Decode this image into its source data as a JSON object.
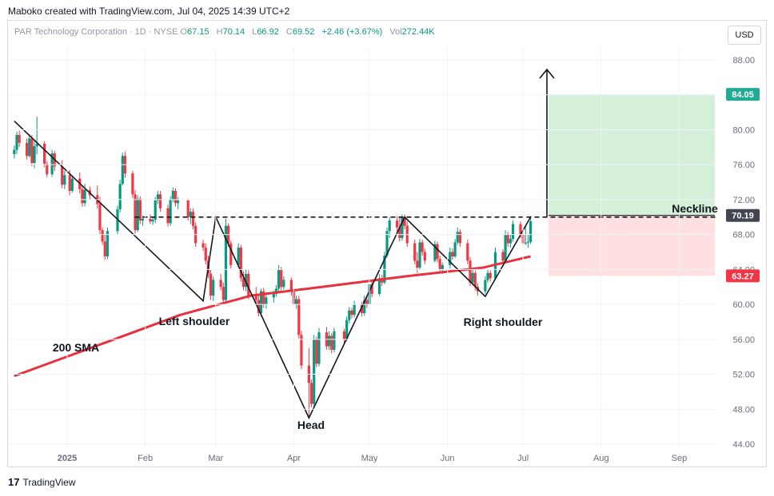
{
  "header": {
    "credit": "Maboko created with TradingView.com, Jul 04, 2025 14:39 UTC+2"
  },
  "legend": {
    "symbol": "PAR Technology Corporation · 1D · NYSE",
    "o_label": "O",
    "o": "67.15",
    "h_label": "H",
    "h": "70.14",
    "l_label": "L",
    "l": "66.92",
    "c_label": "C",
    "c": "69.52",
    "change": "+2.46 (+3.67%)",
    "vol_label": "Vol",
    "vol": "272.44K"
  },
  "currency_button": "USD",
  "footer": {
    "logo": "17",
    "brand": "TradingView"
  },
  "chart_data": {
    "type": "candlestick",
    "price_axis": {
      "ticks": [
        "88.00",
        "84.00",
        "80.00",
        "76.00",
        "72.00",
        "68.00",
        "64.00",
        "60.00",
        "56.00",
        "52.00",
        "48.00",
        "44.00"
      ],
      "range": [
        44,
        91
      ]
    },
    "time_axis": {
      "ticks": [
        "2025",
        "Feb",
        "Mar",
        "Apr",
        "May",
        "Jun",
        "Jul",
        "Aug",
        "Sep"
      ]
    },
    "price_labels": [
      {
        "text": "84.05",
        "value": 84.05,
        "color": "#22ab94"
      },
      {
        "text": "70.19",
        "value": 70.19,
        "color": "#434651"
      },
      {
        "text": "63.27",
        "value": 63.27,
        "color": "#f23645"
      }
    ],
    "annotations": [
      {
        "text": "Neckline"
      },
      {
        "text": "Left shoulder"
      },
      {
        "text": "Head"
      },
      {
        "text": "Right shoulder"
      },
      {
        "text": "200 SMA"
      }
    ],
    "neckline": 70.0,
    "target_zone": [
      70.19,
      84.05
    ],
    "stop_zone": [
      63.27,
      70.19
    ],
    "pattern_points": [
      [
        "2024-12-11",
        81.0
      ],
      [
        "2025-02-24",
        60.4
      ],
      [
        "2025-03-01",
        70.0
      ],
      [
        "2025-04-07",
        47.0
      ],
      [
        "2025-05-15",
        70.0
      ],
      [
        "2025-06-16",
        60.9
      ],
      [
        "2025-07-04",
        70.0
      ]
    ],
    "sma_200": [
      [
        "2024-12-11",
        51.8
      ],
      [
        "2025-01-15",
        55.5
      ],
      [
        "2025-02-15",
        58.8
      ],
      [
        "2025-03-15",
        61.0
      ],
      [
        "2025-04-15",
        62.1
      ],
      [
        "2025-05-15",
        63.2
      ],
      [
        "2025-06-15",
        64.2
      ],
      [
        "2025-07-04",
        65.5
      ]
    ],
    "candles": [
      [
        "12-11",
        77.2,
        78.2,
        76.7,
        77.7
      ],
      [
        "12-12",
        77.7,
        79.8,
        77.2,
        79.4
      ],
      [
        "12-13",
        79.4,
        79.9,
        78.0,
        78.5
      ],
      [
        "12-16",
        78.5,
        79.0,
        76.6,
        77.0
      ],
      [
        "12-17",
        77.0,
        79.5,
        76.8,
        79.0
      ],
      [
        "12-18",
        79.0,
        79.4,
        75.8,
        76.2
      ],
      [
        "12-19",
        76.2,
        78.7,
        75.6,
        78.1
      ],
      [
        "12-20",
        78.1,
        81.5,
        77.2,
        78.4
      ],
      [
        "12-23",
        78.4,
        78.7,
        75.7,
        76.1
      ],
      [
        "12-24",
        76.1,
        76.4,
        74.6,
        74.9
      ],
      [
        "12-26",
        74.9,
        77.7,
        74.6,
        77.3
      ],
      [
        "12-27",
        77.3,
        77.6,
        75.3,
        75.8
      ],
      [
        "12-30",
        75.8,
        76.5,
        73.3,
        73.7
      ],
      [
        "12-31",
        73.7,
        75.3,
        73.2,
        74.8
      ],
      [
        "01-02",
        74.8,
        75.4,
        72.5,
        73.0
      ],
      [
        "01-03",
        73.0,
        74.7,
        72.8,
        74.4
      ],
      [
        "01-06",
        74.4,
        75.1,
        72.7,
        73.2
      ],
      [
        "01-07",
        73.2,
        73.6,
        71.2,
        71.6
      ],
      [
        "01-08",
        71.6,
        73.8,
        71.2,
        73.1
      ],
      [
        "01-10",
        73.1,
        73.5,
        72.0,
        72.5
      ],
      [
        "01-13",
        72.5,
        73.6,
        71.0,
        71.5
      ],
      [
        "01-14",
        71.5,
        72.3,
        68.0,
        68.5
      ],
      [
        "01-15",
        68.5,
        68.8,
        66.8,
        67.2
      ],
      [
        "01-16",
        67.2,
        68.0,
        65.1,
        65.5
      ],
      [
        "01-17",
        65.5,
        68.8,
        65.2,
        68.4
      ],
      [
        "01-21",
        68.4,
        71.3,
        68.0,
        70.9
      ],
      [
        "01-22",
        70.9,
        74.3,
        70.5,
        73.8
      ],
      [
        "01-23",
        73.8,
        77.4,
        73.6,
        77.0
      ],
      [
        "01-24",
        77.0,
        77.5,
        74.5,
        75.0
      ],
      [
        "01-27",
        75.0,
        75.3,
        72.2,
        72.6
      ],
      [
        "01-28",
        72.6,
        73.1,
        68.1,
        68.5
      ],
      [
        "01-29",
        68.5,
        72.5,
        68.3,
        72.1
      ],
      [
        "01-30",
        72.1,
        72.4,
        69.2,
        69.6
      ],
      [
        "01-31",
        69.6,
        70.2,
        69.0,
        69.8
      ],
      [
        "02-03",
        69.8,
        70.3,
        69.2,
        69.5
      ],
      [
        "02-04",
        69.5,
        70.0,
        69.1,
        69.7
      ],
      [
        "02-05",
        69.7,
        72.3,
        69.3,
        71.9
      ],
      [
        "02-06",
        71.9,
        73.0,
        71.5,
        72.6
      ],
      [
        "02-07",
        72.6,
        73.0,
        70.6,
        71.0
      ],
      [
        "02-10",
        71.0,
        71.4,
        68.9,
        69.3
      ],
      [
        "02-11",
        69.3,
        72.4,
        69.0,
        72.0
      ],
      [
        "02-12",
        72.0,
        73.4,
        71.7,
        73.0
      ],
      [
        "02-13",
        73.0,
        73.3,
        71.2,
        71.6
      ],
      [
        "02-14",
        71.6,
        72.3,
        70.9,
        71.9
      ],
      [
        "02-18",
        71.9,
        72.1,
        69.6,
        70.0
      ],
      [
        "02-19",
        70.0,
        71.0,
        69.2,
        70.6
      ],
      [
        "02-20",
        70.6,
        71.0,
        68.6,
        69.0
      ],
      [
        "02-21",
        69.0,
        69.4,
        66.6,
        67.0
      ],
      [
        "02-24",
        67.0,
        67.4,
        66.1,
        66.5
      ],
      [
        "02-25",
        66.5,
        67.0,
        64.6,
        65.0
      ],
      [
        "02-26",
        65.0,
        65.6,
        63.0,
        63.5
      ],
      [
        "02-27",
        63.5,
        64.0,
        60.5,
        61.0
      ],
      [
        "02-28",
        61.0,
        63.2,
        60.4,
        62.8
      ],
      [
        "03-03",
        62.8,
        63.5,
        61.6,
        62.0
      ],
      [
        "03-04",
        62.0,
        62.5,
        60.0,
        60.5
      ],
      [
        "03-05",
        60.5,
        69.8,
        60.2,
        69.0
      ],
      [
        "03-06",
        69.0,
        69.3,
        66.6,
        67.0
      ],
      [
        "03-07",
        67.0,
        67.3,
        64.1,
        64.5
      ],
      [
        "03-10",
        64.5,
        67.0,
        64.2,
        66.5
      ],
      [
        "03-11",
        66.5,
        66.8,
        62.6,
        63.0
      ],
      [
        "03-12",
        63.0,
        63.8,
        61.6,
        62.0
      ],
      [
        "03-13",
        62.0,
        64.0,
        61.5,
        63.5
      ],
      [
        "03-14",
        63.5,
        63.9,
        60.6,
        61.0
      ],
      [
        "03-17",
        61.0,
        62.0,
        60.1,
        60.5
      ],
      [
        "03-18",
        60.5,
        61.1,
        58.6,
        59.0
      ],
      [
        "03-19",
        59.0,
        61.8,
        58.6,
        61.5
      ],
      [
        "03-20",
        61.5,
        61.9,
        59.6,
        60.0
      ],
      [
        "03-21",
        60.0,
        61.3,
        59.5,
        60.8
      ],
      [
        "03-24",
        60.8,
        61.6,
        60.2,
        61.2
      ],
      [
        "03-25",
        61.2,
        62.2,
        60.9,
        61.8
      ],
      [
        "03-26",
        61.8,
        64.5,
        61.5,
        64.0
      ],
      [
        "03-27",
        64.0,
        64.3,
        61.6,
        62.0
      ],
      [
        "03-28",
        62.0,
        63.2,
        61.7,
        62.8
      ],
      [
        "03-31",
        62.8,
        63.1,
        61.0,
        61.5
      ],
      [
        "04-01",
        61.5,
        61.8,
        59.6,
        60.0
      ],
      [
        "04-02",
        60.0,
        61.0,
        59.5,
        60.6
      ],
      [
        "04-03",
        60.6,
        61.0,
        56.1,
        56.5
      ],
      [
        "04-04",
        56.5,
        57.0,
        52.6,
        53.0
      ],
      [
        "04-07",
        53.0,
        55.0,
        47.0,
        51.0
      ],
      [
        "04-08",
        51.0,
        51.4,
        48.2,
        48.6
      ],
      [
        "04-09",
        48.6,
        56.5,
        48.3,
        56.0
      ],
      [
        "04-10",
        56.0,
        56.3,
        52.8,
        53.2
      ],
      [
        "04-11",
        53.2,
        57.3,
        52.9,
        56.8
      ],
      [
        "04-14",
        56.8,
        57.4,
        54.8,
        55.2
      ],
      [
        "04-15",
        55.2,
        56.9,
        54.8,
        56.4
      ],
      [
        "04-16",
        56.4,
        56.7,
        54.4,
        54.8
      ],
      [
        "04-17",
        54.8,
        57.3,
        54.5,
        56.9
      ],
      [
        "04-21",
        56.9,
        57.2,
        55.6,
        56.0
      ],
      [
        "04-22",
        56.0,
        58.6,
        55.8,
        58.2
      ],
      [
        "04-23",
        58.2,
        59.7,
        57.8,
        59.3
      ],
      [
        "04-24",
        59.3,
        59.6,
        58.4,
        58.8
      ],
      [
        "04-25",
        58.8,
        60.4,
        58.5,
        60.0
      ],
      [
        "04-28",
        60.0,
        60.3,
        58.6,
        59.0
      ],
      [
        "04-29",
        59.0,
        61.0,
        58.7,
        60.5
      ],
      [
        "04-30",
        60.5,
        61.0,
        59.6,
        60.0
      ],
      [
        "05-01",
        60.0,
        62.8,
        59.8,
        62.3
      ],
      [
        "05-02",
        62.3,
        62.6,
        60.8,
        61.2
      ],
      [
        "05-05",
        61.2,
        63.5,
        61.0,
        63.0
      ],
      [
        "05-06",
        63.0,
        63.4,
        62.1,
        62.5
      ],
      [
        "05-07",
        62.5,
        66.0,
        62.3,
        65.6
      ],
      [
        "05-08",
        65.6,
        68.8,
        65.3,
        68.4
      ],
      [
        "05-09",
        68.4,
        70.0,
        67.6,
        69.6
      ],
      [
        "05-12",
        69.6,
        70.1,
        68.3,
        68.8
      ],
      [
        "05-13",
        68.8,
        70.0,
        67.2,
        67.6
      ],
      [
        "05-14",
        67.6,
        70.3,
        67.3,
        70.0
      ],
      [
        "05-15",
        70.0,
        70.3,
        68.6,
        69.0
      ],
      [
        "05-16",
        69.0,
        69.5,
        66.6,
        67.0
      ],
      [
        "05-19",
        67.0,
        67.4,
        64.6,
        65.0
      ],
      [
        "05-20",
        65.0,
        66.0,
        63.6,
        64.2
      ],
      [
        "05-21",
        64.2,
        67.5,
        64.0,
        67.1
      ],
      [
        "05-22",
        67.1,
        67.4,
        65.6,
        66.0
      ],
      [
        "05-23",
        66.0,
        66.4,
        64.6,
        65.0
      ],
      [
        "05-27",
        65.0,
        67.3,
        64.8,
        66.9
      ],
      [
        "05-28",
        66.9,
        67.2,
        64.8,
        65.2
      ],
      [
        "05-29",
        65.2,
        65.6,
        63.6,
        64.0
      ],
      [
        "05-30",
        64.0,
        64.8,
        63.5,
        64.5
      ],
      [
        "06-02",
        64.5,
        66.5,
        64.1,
        66.0
      ],
      [
        "06-03",
        66.0,
        66.4,
        65.1,
        65.5
      ],
      [
        "06-04",
        65.5,
        67.5,
        65.3,
        67.1
      ],
      [
        "06-05",
        67.1,
        68.8,
        66.8,
        68.3
      ],
      [
        "06-06",
        68.3,
        68.6,
        66.6,
        67.0
      ],
      [
        "06-09",
        67.0,
        67.4,
        64.6,
        65.0
      ],
      [
        "06-10",
        65.0,
        65.4,
        62.1,
        62.5
      ],
      [
        "06-11",
        62.5,
        64.0,
        62.2,
        63.6
      ],
      [
        "06-12",
        63.6,
        63.9,
        61.6,
        62.0
      ],
      [
        "06-13",
        62.0,
        62.4,
        61.0,
        61.5
      ],
      [
        "06-16",
        61.5,
        63.2,
        61.2,
        62.8
      ],
      [
        "06-17",
        62.8,
        64.0,
        62.5,
        63.6
      ],
      [
        "06-18",
        63.6,
        63.9,
        62.6,
        63.0
      ],
      [
        "06-20",
        63.0,
        66.5,
        62.8,
        66.0
      ],
      [
        "06-23",
        66.0,
        66.3,
        64.6,
        65.0
      ],
      [
        "06-24",
        65.0,
        68.5,
        64.8,
        68.0
      ],
      [
        "06-25",
        68.0,
        68.3,
        66.6,
        67.0
      ],
      [
        "06-26",
        67.0,
        68.0,
        66.5,
        67.5
      ],
      [
        "06-27",
        67.5,
        69.6,
        67.2,
        69.2
      ],
      [
        "06-30",
        69.2,
        69.5,
        67.6,
        68.0
      ],
      [
        "07-01",
        68.0,
        68.4,
        66.6,
        67.0
      ],
      [
        "07-02",
        67.0,
        69.0,
        66.8,
        67.06
      ],
      [
        "07-03",
        67.06,
        68.0,
        66.5,
        67.15
      ],
      [
        "07-04",
        67.15,
        70.14,
        66.92,
        69.52
      ]
    ]
  }
}
